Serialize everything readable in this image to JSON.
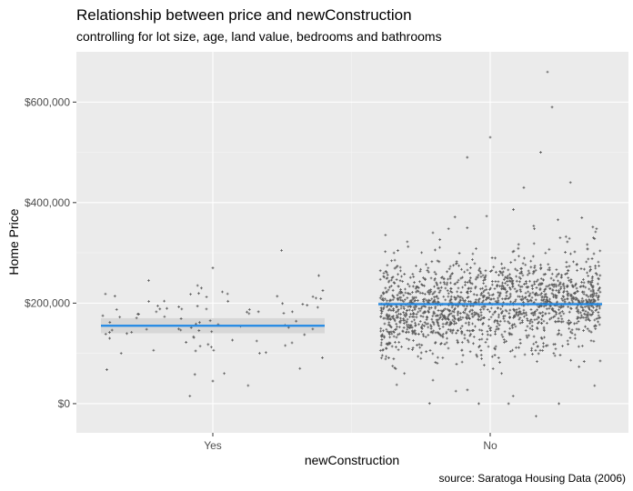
{
  "chart_data": {
    "type": "scatter",
    "title": "Relationship between price and newConstruction",
    "subtitle": "controlling for lot size, age, land value, bedrooms and bathrooms",
    "caption": "source: Saratoga Housing Data (2006)",
    "xlabel": "newConstruction",
    "ylabel": "Home Price",
    "categories": [
      "Yes",
      "No"
    ],
    "ylim": [
      -58000,
      700000
    ],
    "yticks": [
      0,
      200000,
      400000,
      600000
    ],
    "ytick_labels": [
      "$0",
      "$200,000",
      "$400,000",
      "$600,000"
    ],
    "grid": true,
    "colors": {
      "panel": "#ebebeb",
      "grid_major": "#ffffff",
      "grid_minor": "#f5f5f5",
      "points": "#595959",
      "fit_line": "#1f88e5",
      "ribbon": "#d3d3d3"
    },
    "fit": [
      {
        "category": "Yes",
        "value": 155000,
        "lower": 140000,
        "upper": 170000
      },
      {
        "category": "No",
        "value": 198000,
        "lower": 194000,
        "upper": 202000
      }
    ],
    "point_counts": {
      "Yes": 81,
      "No": 1647
    },
    "notable_points": {
      "Yes": [
        [
          -0.48,
          175000
        ],
        [
          -0.45,
          130000
        ],
        [
          -0.4,
          100000
        ],
        [
          -0.28,
          245000
        ],
        [
          -0.1,
          15000
        ],
        [
          -0.05,
          230000
        ],
        [
          0,
          270000
        ],
        [
          0.0,
          45000
        ],
        [
          0.05,
          60000
        ],
        [
          0.3,
          305000
        ],
        [
          0.38,
          70000
        ],
        [
          0.45,
          210000
        ],
        [
          0.48,
          225000
        ]
      ],
      "No": [
        [
          -0.42,
          300000
        ],
        [
          -0.25,
          340000
        ],
        [
          -0.15,
          25000
        ],
        [
          -0.1,
          490000
        ],
        [
          -0.05,
          0
        ],
        [
          0.0,
          530000
        ],
        [
          0.05,
          60000
        ],
        [
          0.08,
          0
        ],
        [
          0.1,
          15000
        ],
        [
          0.15,
          180000
        ],
        [
          0.2,
          -25000
        ],
        [
          0.22,
          500000
        ],
        [
          0.25,
          660000
        ],
        [
          0.27,
          590000
        ],
        [
          0.3,
          0
        ],
        [
          0.35,
          440000
        ],
        [
          0.4,
          370000
        ],
        [
          0.45,
          330000
        ],
        [
          0.48,
          85000
        ]
      ]
    }
  }
}
